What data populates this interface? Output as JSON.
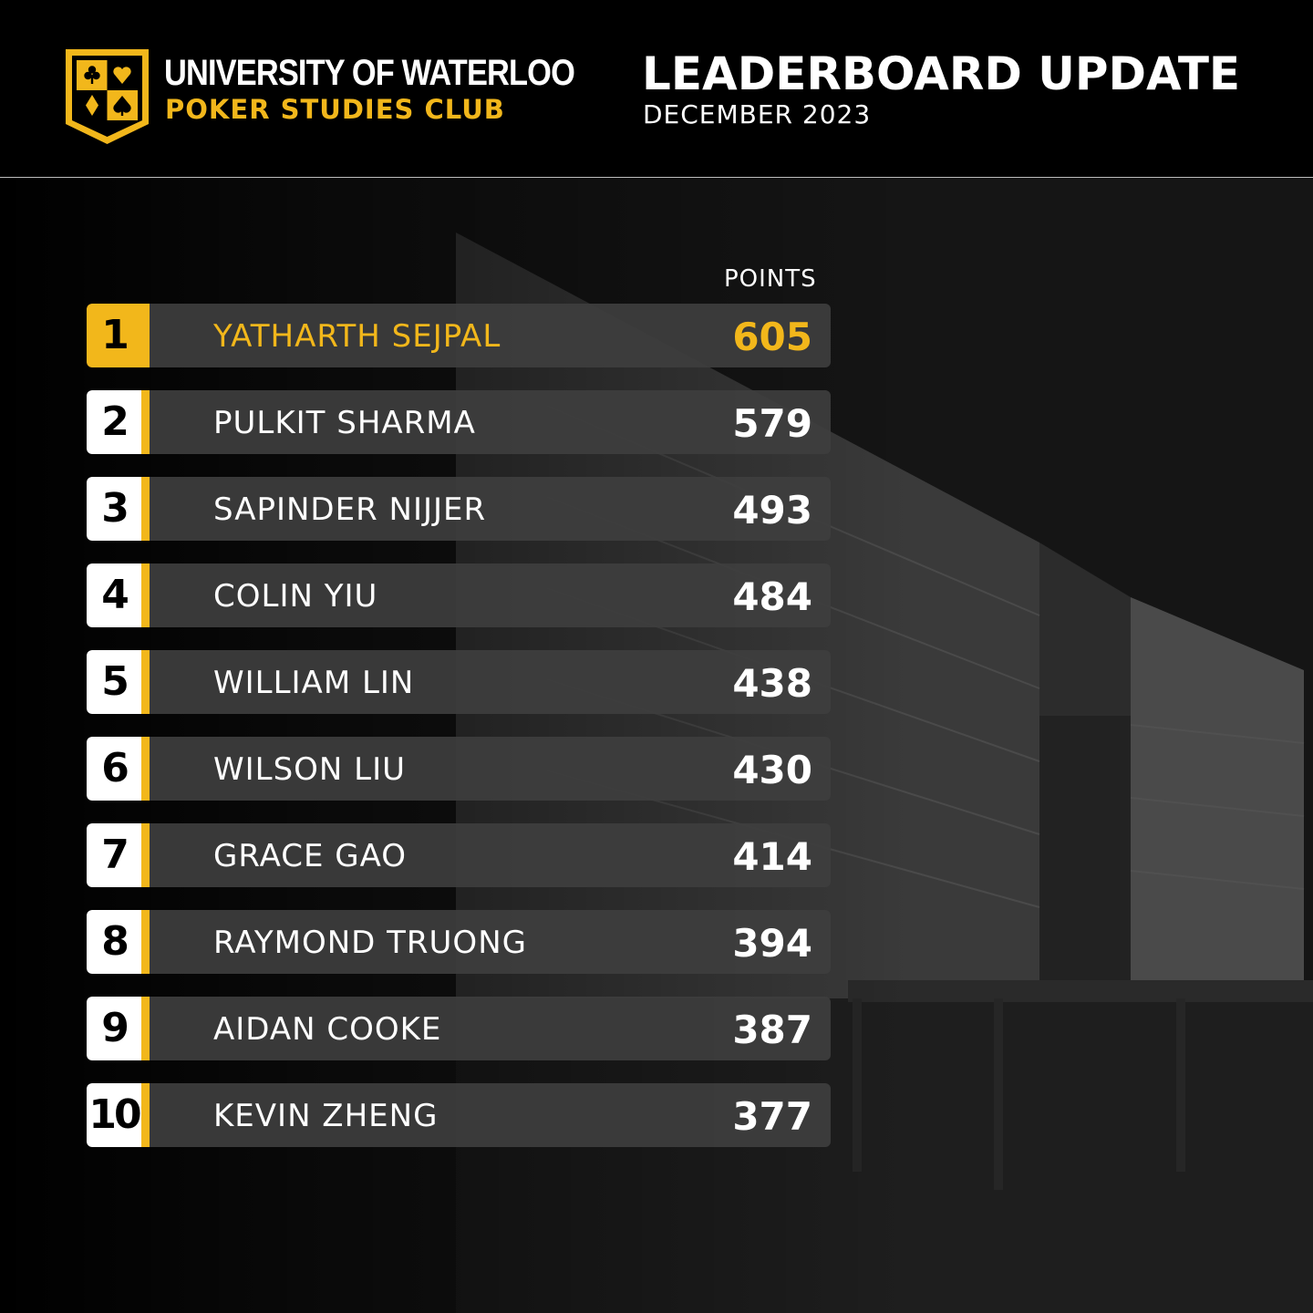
{
  "header": {
    "club_name": "UNIVERSITY OF WATERLOO",
    "club_sub": "POKER STUDIES CLUB",
    "title": "LEADERBOARD UPDATE",
    "date": "DECEMBER 2023"
  },
  "logo": {
    "icons": [
      "club-suit-icon",
      "heart-suit-icon",
      "diamond-suit-icon",
      "spade-suit-icon"
    ]
  },
  "colors": {
    "accent": "#f2b71b",
    "background": "#000000",
    "row": "#3e3e3e",
    "rank_box": "#ffffff"
  },
  "leaderboard": {
    "points_header": "POINTS",
    "rows": [
      {
        "rank": "1",
        "name": "YATHARTH SEJPAL",
        "points": "605"
      },
      {
        "rank": "2",
        "name": "PULKIT SHARMA",
        "points": "579"
      },
      {
        "rank": "3",
        "name": "SAPINDER NIJJER",
        "points": "493"
      },
      {
        "rank": "4",
        "name": "COLIN YIU",
        "points": "484"
      },
      {
        "rank": "5",
        "name": "WILLIAM LIN",
        "points": "438"
      },
      {
        "rank": "6",
        "name": "WILSON LIU",
        "points": "430"
      },
      {
        "rank": "7",
        "name": "GRACE GAO",
        "points": "414"
      },
      {
        "rank": "8",
        "name": "RAYMOND TRUONG",
        "points": "394"
      },
      {
        "rank": "9",
        "name": "AIDAN COOKE",
        "points": "387"
      },
      {
        "rank": "10",
        "name": "KEVIN ZHENG",
        "points": "377"
      }
    ]
  }
}
